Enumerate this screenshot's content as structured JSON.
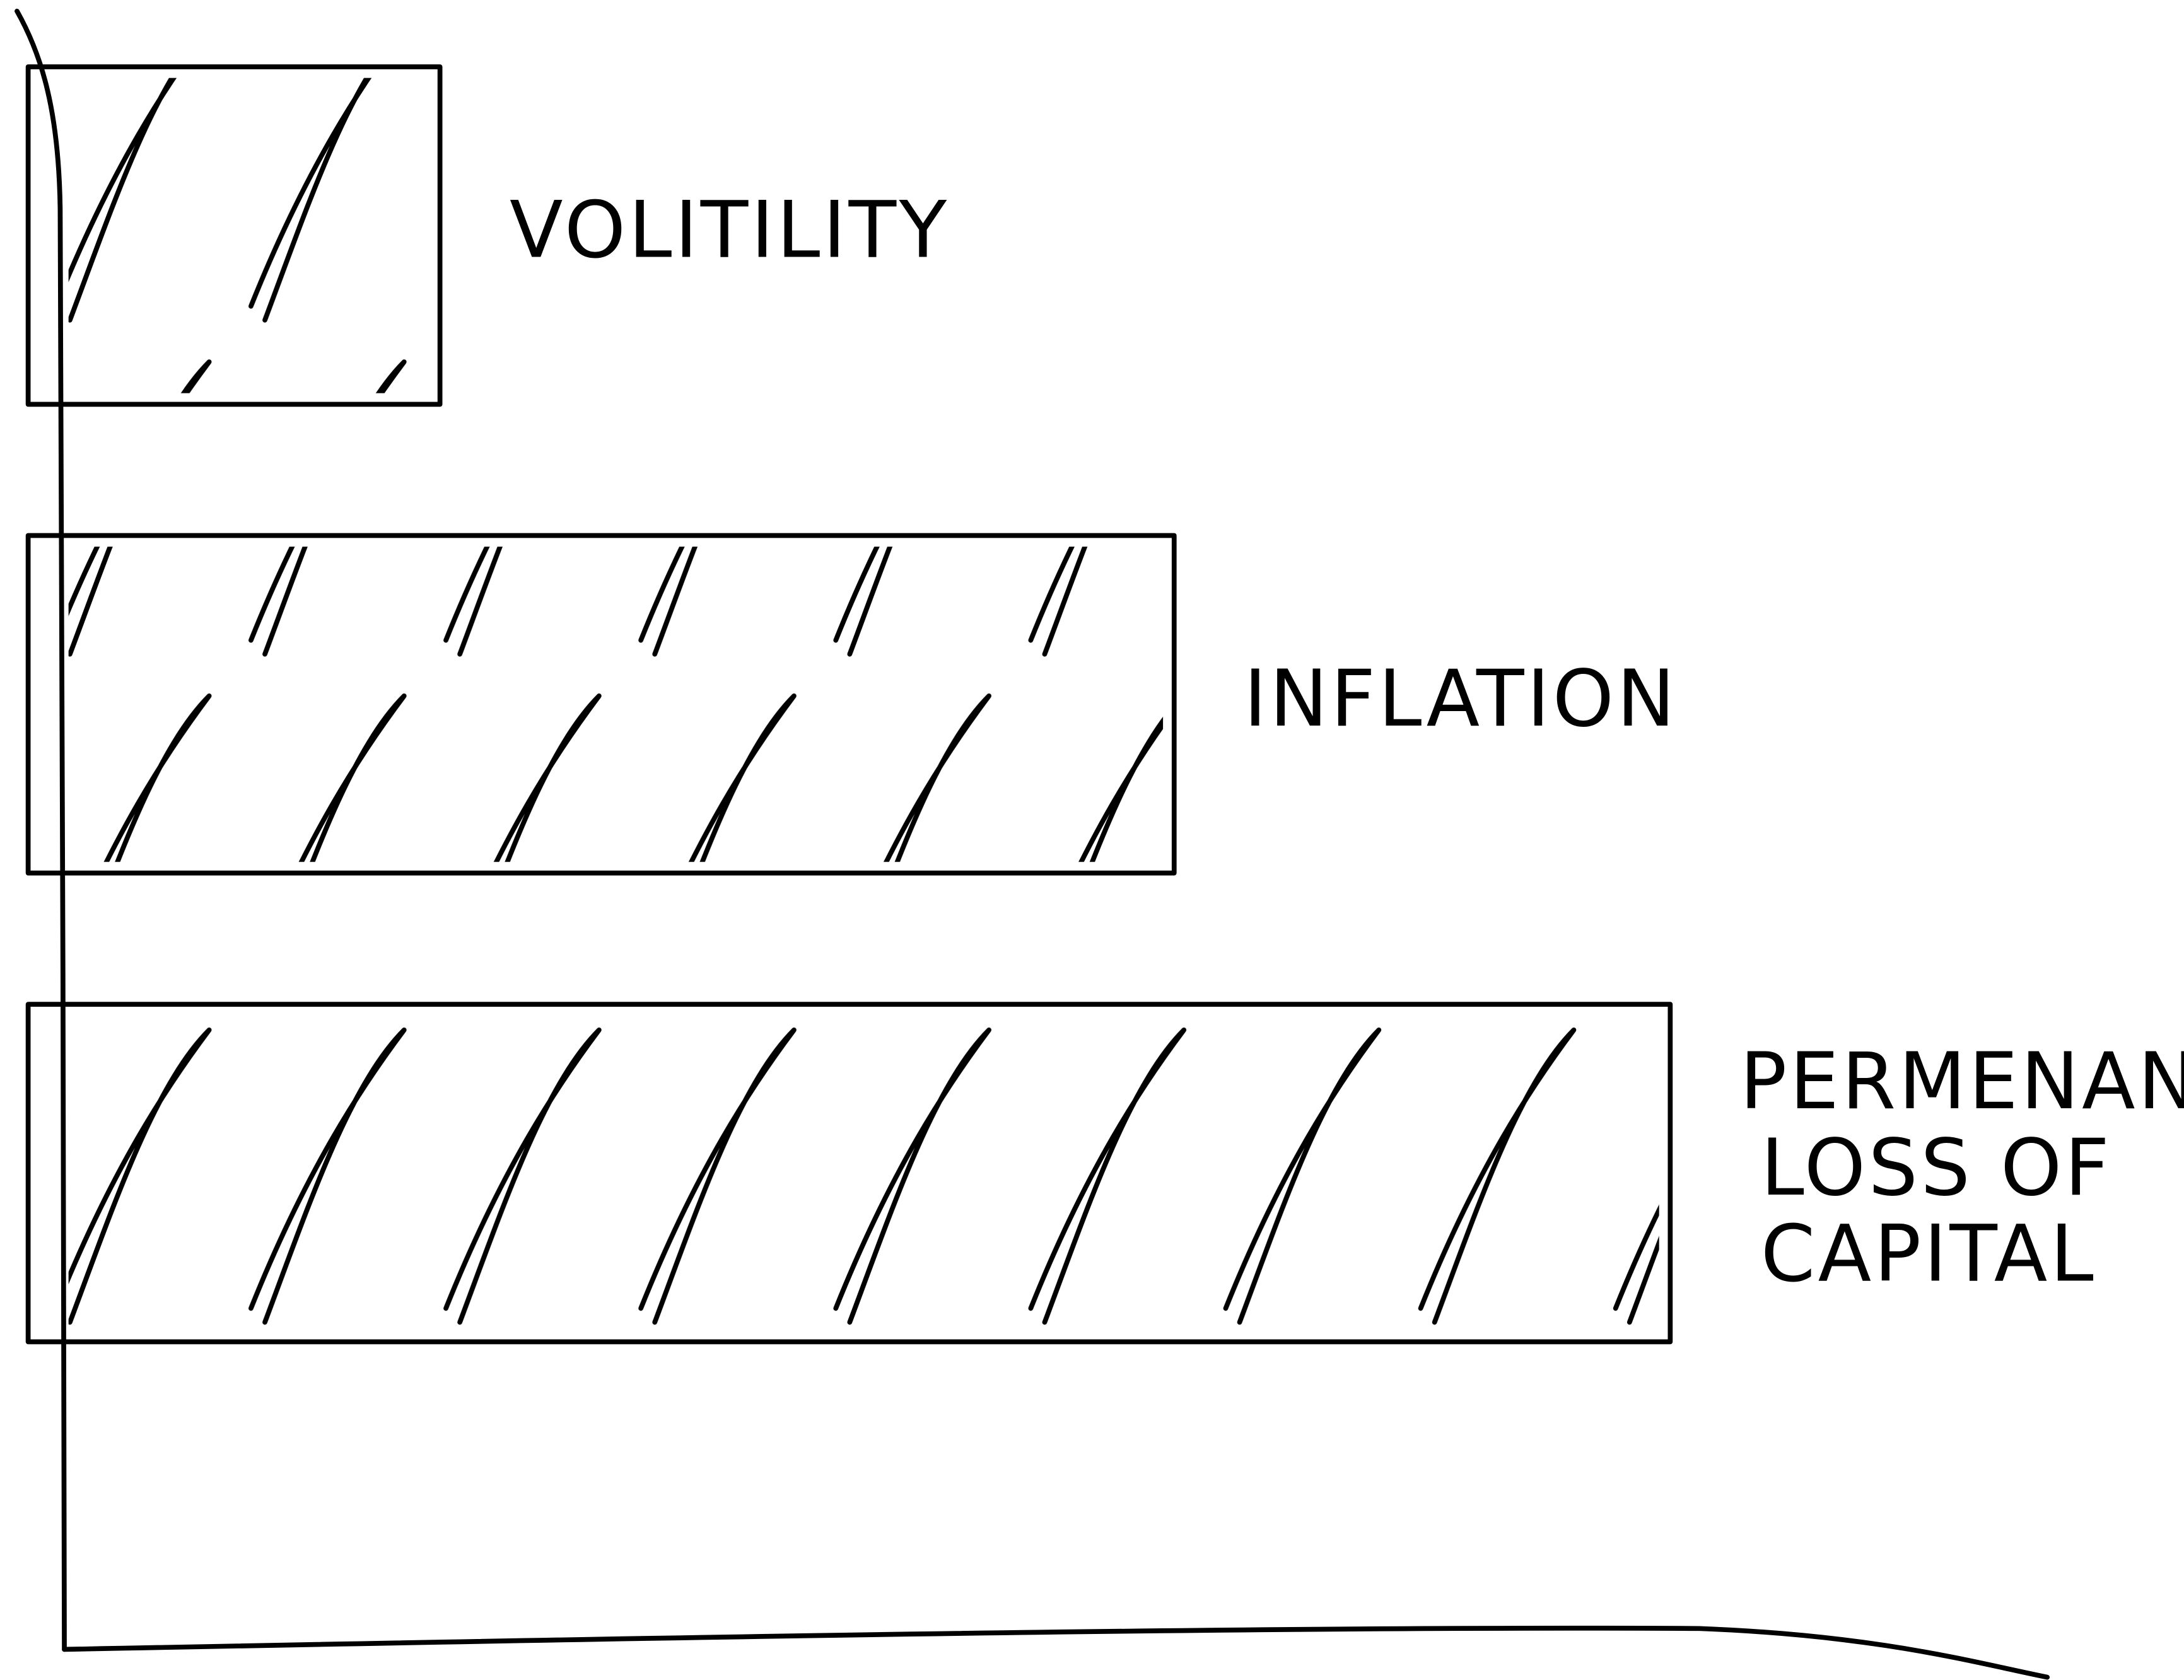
{
  "chart_data": {
    "type": "bar",
    "orientation": "horizontal",
    "categories": [
      "VOLITILITY",
      "INFLATION",
      "PERMENANT\nLOSS OF\nCAPITAL"
    ],
    "values": [
      19,
      56,
      81
    ],
    "color": "#000000",
    "hatch": true,
    "xlim": [
      0,
      100
    ]
  }
}
